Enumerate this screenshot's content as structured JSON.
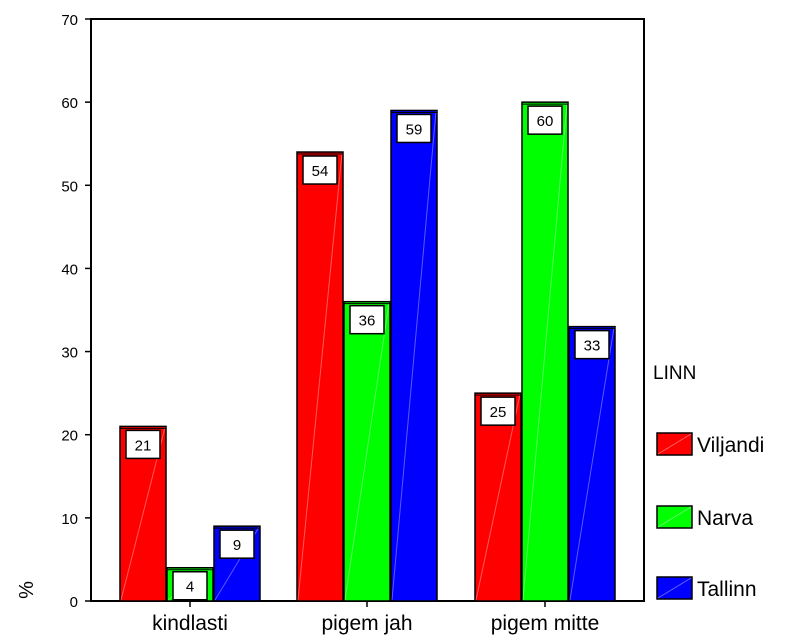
{
  "chart_data": {
    "type": "bar",
    "title": "",
    "xlabel": "",
    "ylabel": "%",
    "ylim": [
      0,
      70
    ],
    "yticks": [
      0,
      10,
      20,
      30,
      40,
      50,
      60,
      70
    ],
    "grid": false,
    "categories": [
      "kindlasti",
      "pigem jah",
      "pigem mitte"
    ],
    "series": [
      {
        "name": "Viljandi",
        "values": [
          21,
          54,
          25
        ],
        "value_labels": [
          "21",
          "54",
          "25"
        ],
        "color": "#ff0000"
      },
      {
        "name": "Narva",
        "values": [
          4,
          36,
          60
        ],
        "value_labels": [
          "4",
          "36",
          "60"
        ],
        "color": "#00ff00"
      },
      {
        "name": "Tallinn",
        "values": [
          9,
          59,
          33
        ],
        "value_labels": [
          "9",
          "59",
          "33"
        ],
        "color": "#0000ff"
      }
    ],
    "legend": {
      "title": "LINN",
      "placement": "right"
    }
  }
}
